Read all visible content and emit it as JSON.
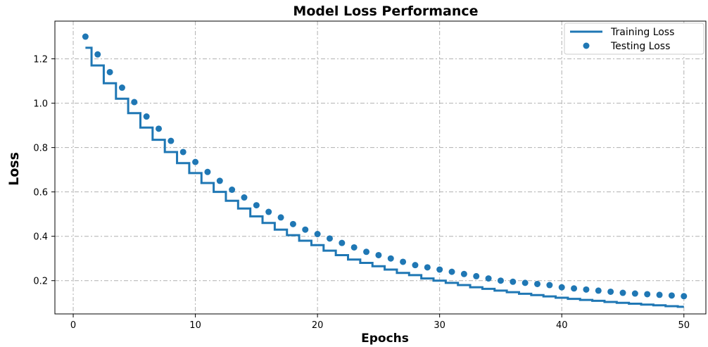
{
  "chart_data": {
    "type": "line",
    "title": "Model Loss Performance",
    "xlabel": "Epochs",
    "ylabel": "Loss",
    "xlim": [
      -1.5,
      51.8
    ],
    "ylim": [
      0.05,
      1.37
    ],
    "xticks": [
      0,
      10,
      20,
      30,
      40,
      50
    ],
    "xtick_labels": [
      "0",
      "10",
      "20",
      "30",
      "40",
      "50"
    ],
    "yticks": [
      0.2,
      0.4,
      0.6,
      0.8,
      1.0,
      1.2
    ],
    "ytick_labels": [
      "0.2",
      "0.4",
      "0.6",
      "0.8",
      "1.0",
      "1.2"
    ],
    "grid": true,
    "legend_position": "top-right",
    "color": "#1f77b4",
    "series": [
      {
        "name": "Training Loss",
        "style": "step",
        "x": [
          1,
          2,
          3,
          4,
          5,
          6,
          7,
          8,
          9,
          10,
          11,
          12,
          13,
          14,
          15,
          16,
          17,
          18,
          19,
          20,
          21,
          22,
          23,
          24,
          25,
          26,
          27,
          28,
          29,
          30,
          31,
          32,
          33,
          34,
          35,
          36,
          37,
          38,
          39,
          40,
          41,
          42,
          43,
          44,
          45,
          46,
          47,
          48,
          49,
          50
        ],
        "values": [
          1.25,
          1.17,
          1.09,
          1.02,
          0.955,
          0.89,
          0.835,
          0.78,
          0.73,
          0.685,
          0.64,
          0.6,
          0.56,
          0.525,
          0.49,
          0.46,
          0.43,
          0.405,
          0.38,
          0.36,
          0.335,
          0.315,
          0.295,
          0.28,
          0.265,
          0.25,
          0.235,
          0.225,
          0.21,
          0.2,
          0.19,
          0.18,
          0.17,
          0.163,
          0.155,
          0.148,
          0.141,
          0.135,
          0.129,
          0.123,
          0.118,
          0.113,
          0.109,
          0.104,
          0.1,
          0.096,
          0.092,
          0.089,
          0.085,
          0.082
        ]
      },
      {
        "name": "Testing Loss",
        "style": "dots",
        "x": [
          1,
          2,
          3,
          4,
          5,
          6,
          7,
          8,
          9,
          10,
          11,
          12,
          13,
          14,
          15,
          16,
          17,
          18,
          19,
          20,
          21,
          22,
          23,
          24,
          25,
          26,
          27,
          28,
          29,
          30,
          31,
          32,
          33,
          34,
          35,
          36,
          37,
          38,
          39,
          40,
          41,
          42,
          43,
          44,
          45,
          46,
          47,
          48,
          49,
          50
        ],
        "values": [
          1.3,
          1.22,
          1.14,
          1.07,
          1.005,
          0.94,
          0.885,
          0.83,
          0.78,
          0.735,
          0.69,
          0.65,
          0.61,
          0.575,
          0.54,
          0.51,
          0.485,
          0.455,
          0.43,
          0.41,
          0.39,
          0.37,
          0.35,
          0.33,
          0.315,
          0.3,
          0.285,
          0.27,
          0.26,
          0.25,
          0.24,
          0.23,
          0.22,
          0.21,
          0.2,
          0.195,
          0.19,
          0.185,
          0.18,
          0.17,
          0.165,
          0.16,
          0.155,
          0.15,
          0.145,
          0.142,
          0.139,
          0.136,
          0.133,
          0.13
        ]
      }
    ]
  }
}
